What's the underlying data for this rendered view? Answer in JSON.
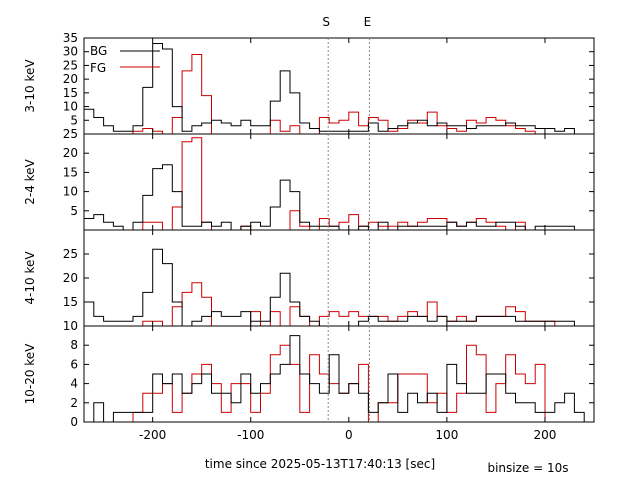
{
  "chart_data": {
    "type": "line",
    "style": "step",
    "xlabel": "time since 2025-05-13T17:40:13 [sec]",
    "footnote": "binsize = 10s",
    "x_range": [
      -270,
      250
    ],
    "x_ticks": [
      -200,
      -100,
      0,
      100,
      200
    ],
    "markers": [
      {
        "label": "S",
        "x": -21
      },
      {
        "label": "E",
        "x": 21
      }
    ],
    "legend": [
      {
        "name": "BG",
        "color": "#000000"
      },
      {
        "name": "FG",
        "color": "#cc0000"
      }
    ],
    "panels": [
      {
        "ylabel": "3-10 keV",
        "ylim": [
          0,
          35
        ],
        "yticks": [
          0,
          5,
          10,
          15,
          20,
          25,
          30,
          35
        ],
        "ytick_labels": [
          "",
          "5",
          "10",
          "15",
          "20",
          "25",
          "30",
          "35"
        ],
        "series": [
          {
            "name": "BG",
            "bin_starts": [
              -270,
              -260,
              -250,
              -240,
              -230,
              -220,
              -210,
              -200,
              -190,
              -180,
              -170,
              -160,
              -150,
              -140,
              -130,
              -120,
              -110,
              -100,
              -90,
              -80,
              -70,
              -60,
              -50,
              -40,
              -30,
              -20,
              -10,
              0,
              10,
              20,
              30,
              40,
              50,
              60,
              70,
              80,
              90,
              100,
              110,
              120,
              130,
              140,
              150,
              160,
              170,
              180,
              190,
              200,
              210,
              220,
              230
            ],
            "values": [
              9,
              6,
              3,
              1,
              1,
              3,
              17,
              33,
              31,
              10,
              1,
              3,
              4,
              5,
              4,
              3,
              5,
              3,
              3,
              12,
              23,
              15,
              4,
              2,
              1,
              1,
              1,
              1,
              1,
              4,
              1,
              2,
              3,
              4,
              5,
              3,
              4,
              3,
              3,
              2,
              3,
              3,
              3,
              4,
              3,
              3,
              2,
              2,
              1,
              2,
              0
            ]
          },
          {
            "name": "FG",
            "bin_starts": [
              -270,
              -260,
              -250,
              -240,
              -230,
              -220,
              -210,
              -200,
              -190,
              -180,
              -170,
              -160,
              -150,
              -140,
              -130,
              -120,
              -110,
              -100,
              -90,
              -80,
              -70,
              -60,
              -50,
              -40,
              -30,
              -20,
              -10,
              0,
              10,
              20,
              30,
              40,
              50,
              60,
              70,
              80,
              90,
              100,
              110,
              120,
              130,
              140,
              150,
              160,
              170,
              180,
              190,
              200,
              210,
              220,
              230
            ],
            "values": [
              0,
              0,
              0,
              0,
              0,
              1,
              2,
              1,
              0,
              6,
              23,
              29,
              14,
              0,
              0,
              0,
              0,
              0,
              0,
              5,
              1,
              3,
              0,
              0,
              6,
              4,
              5,
              8,
              3,
              6,
              5,
              1,
              2,
              5,
              4,
              8,
              3,
              2,
              1,
              5,
              4,
              6,
              5,
              3,
              2,
              1,
              0,
              0,
              0,
              0,
              0
            ]
          }
        ]
      },
      {
        "ylabel": "2-4 keV",
        "ylim": [
          0,
          25
        ],
        "yticks": [
          0,
          5,
          10,
          15,
          20,
          25
        ],
        "ytick_labels": [
          "",
          "5",
          "10",
          "15",
          "20",
          "25"
        ],
        "series": [
          {
            "name": "BG",
            "bin_starts": [
              -270,
              -260,
              -250,
              -240,
              -230,
              -220,
              -210,
              -200,
              -190,
              -180,
              -170,
              -160,
              -150,
              -140,
              -130,
              -120,
              -110,
              -100,
              -90,
              -80,
              -70,
              -60,
              -50,
              -40,
              -30,
              -20,
              -10,
              0,
              10,
              20,
              30,
              40,
              50,
              60,
              70,
              80,
              90,
              100,
              110,
              120,
              130,
              140,
              150,
              160,
              170,
              180,
              190,
              200,
              210,
              220,
              230
            ],
            "values": [
              3,
              4,
              2,
              1,
              0,
              2,
              9,
              16,
              17,
              10,
              1,
              1,
              2,
              1,
              2,
              0,
              1,
              2,
              1,
              6,
              13,
              10,
              2,
              1,
              1,
              1,
              0,
              0,
              1,
              0,
              2,
              0,
              1,
              1,
              1,
              1,
              1,
              2,
              1,
              2,
              1,
              1,
              2,
              2,
              1,
              0,
              1,
              1,
              1,
              1,
              0
            ]
          },
          {
            "name": "FG",
            "bin_starts": [
              -270,
              -260,
              -250,
              -240,
              -230,
              -220,
              -210,
              -200,
              -190,
              -180,
              -170,
              -160,
              -150,
              -140,
              -130,
              -120,
              -110,
              -100,
              -90,
              -80,
              -70,
              -60,
              -50,
              -40,
              -30,
              -20,
              -10,
              0,
              10,
              20,
              30,
              40,
              50,
              60,
              70,
              80,
              90,
              100,
              110,
              120,
              130,
              140,
              150,
              160,
              170,
              180,
              190,
              200,
              210,
              220,
              230
            ],
            "values": [
              0,
              0,
              0,
              0,
              0,
              0,
              2,
              2,
              0,
              6,
              23,
              24,
              2,
              0,
              0,
              0,
              1,
              0,
              0,
              0,
              0,
              5,
              1,
              0,
              3,
              1,
              2,
              4,
              1,
              2,
              1,
              1,
              2,
              1,
              2,
              3,
              3,
              2,
              1,
              2,
              3,
              2,
              1,
              0,
              2,
              0,
              0,
              0,
              0,
              0,
              0
            ]
          }
        ]
      },
      {
        "ylabel": "4-10 keV",
        "ylim": [
          10,
          30
        ],
        "yticks": [
          10,
          15,
          20,
          25,
          30
        ],
        "ytick_labels": [
          "10",
          "15",
          "20",
          "25",
          ""
        ],
        "series": [
          {
            "name": "BG",
            "bin_starts": [
              -270,
              -260,
              -250,
              -240,
              -230,
              -220,
              -210,
              -200,
              -190,
              -180,
              -170,
              -160,
              -150,
              -140,
              -130,
              -120,
              -110,
              -100,
              -90,
              -80,
              -70,
              -60,
              -50,
              -40,
              -30,
              -20,
              -10,
              0,
              10,
              20,
              30,
              40,
              50,
              60,
              70,
              80,
              90,
              100,
              110,
              120,
              130,
              140,
              150,
              160,
              170,
              180,
              190,
              200,
              210,
              220,
              230
            ],
            "values": [
              15,
              12,
              11,
              11,
              11,
              12,
              17,
              26,
              23,
              15,
              10,
              11,
              12,
              13,
              12,
              12,
              13,
              11,
              11,
              16,
              21,
              15,
              12,
              11,
              10,
              10,
              10,
              10,
              11,
              12,
              11,
              11,
              11,
              12,
              12,
              11,
              12,
              11,
              11,
              11,
              12,
              12,
              12,
              12,
              11,
              11,
              11,
              11,
              11,
              11,
              10
            ]
          },
          {
            "name": "FG",
            "bin_starts": [
              -270,
              -260,
              -250,
              -240,
              -230,
              -220,
              -210,
              -200,
              -190,
              -180,
              -170,
              -160,
              -150,
              -140,
              -130,
              -120,
              -110,
              -100,
              -90,
              -80,
              -70,
              -60,
              -50,
              -40,
              -30,
              -20,
              -10,
              0,
              10,
              20,
              30,
              40,
              50,
              60,
              70,
              80,
              90,
              100,
              110,
              120,
              130,
              140,
              150,
              160,
              170,
              180,
              190,
              200,
              210,
              220,
              230
            ],
            "values": [
              0,
              0,
              0,
              0,
              0,
              0,
              11,
              11,
              10,
              14,
              17,
              19,
              16,
              10,
              10,
              10,
              10,
              13,
              10,
              13,
              10,
              14,
              12,
              10,
              12,
              13,
              12,
              13,
              12,
              12,
              12,
              11,
              12,
              13,
              12,
              15,
              12,
              11,
              12,
              11,
              12,
              12,
              12,
              14,
              13,
              11,
              11,
              11,
              10,
              10,
              10
            ]
          }
        ]
      },
      {
        "ylabel": "10-20 keV",
        "ylim": [
          0,
          10
        ],
        "yticks": [
          0,
          2,
          4,
          6,
          8
        ],
        "ytick_labels": [
          "0",
          "2",
          "4",
          "6",
          "8"
        ],
        "series": [
          {
            "name": "BG",
            "bin_starts": [
              -270,
              -260,
              -250,
              -240,
              -230,
              -220,
              -210,
              -200,
              -190,
              -180,
              -170,
              -160,
              -150,
              -140,
              -130,
              -120,
              -110,
              -100,
              -90,
              -80,
              -70,
              -60,
              -50,
              -40,
              -30,
              -20,
              -10,
              0,
              10,
              20,
              30,
              40,
              50,
              60,
              70,
              80,
              90,
              100,
              110,
              120,
              130,
              140,
              150,
              160,
              170,
              180,
              190,
              200,
              210,
              220,
              230,
              240
            ],
            "values": [
              0,
              2,
              0,
              1,
              1,
              1,
              1,
              5,
              4,
              5,
              3,
              4,
              5,
              3,
              3,
              2,
              5,
              3,
              4,
              5,
              6,
              9,
              5,
              4,
              3,
              7,
              3,
              4,
              3,
              1,
              2,
              5,
              1,
              3,
              2,
              3,
              1,
              6,
              4,
              3,
              3,
              5,
              5,
              3,
              2,
              2,
              1,
              1,
              2,
              3,
              1,
              0
            ]
          },
          {
            "name": "FG",
            "bin_starts": [
              -270,
              -260,
              -250,
              -240,
              -230,
              -220,
              -210,
              -200,
              -190,
              -180,
              -170,
              -160,
              -150,
              -140,
              -130,
              -120,
              -110,
              -100,
              -90,
              -80,
              -70,
              -60,
              -50,
              -40,
              -30,
              -20,
              -10,
              0,
              10,
              20,
              30,
              40,
              50,
              60,
              70,
              80,
              90,
              100,
              110,
              120,
              130,
              140,
              150,
              160,
              170,
              180,
              190,
              200,
              210,
              220,
              230
            ],
            "values": [
              0,
              0,
              0,
              0,
              0,
              1,
              3,
              3,
              4,
              1,
              3,
              5,
              6,
              4,
              1,
              4,
              4,
              1,
              3,
              7,
              8,
              6,
              1,
              7,
              5,
              4,
              3,
              4,
              6,
              0,
              2,
              2,
              5,
              5,
              5,
              2,
              3,
              1,
              3,
              8,
              7,
              1,
              4,
              7,
              5,
              4,
              6,
              0,
              0,
              0,
              0
            ]
          }
        ]
      }
    ]
  }
}
